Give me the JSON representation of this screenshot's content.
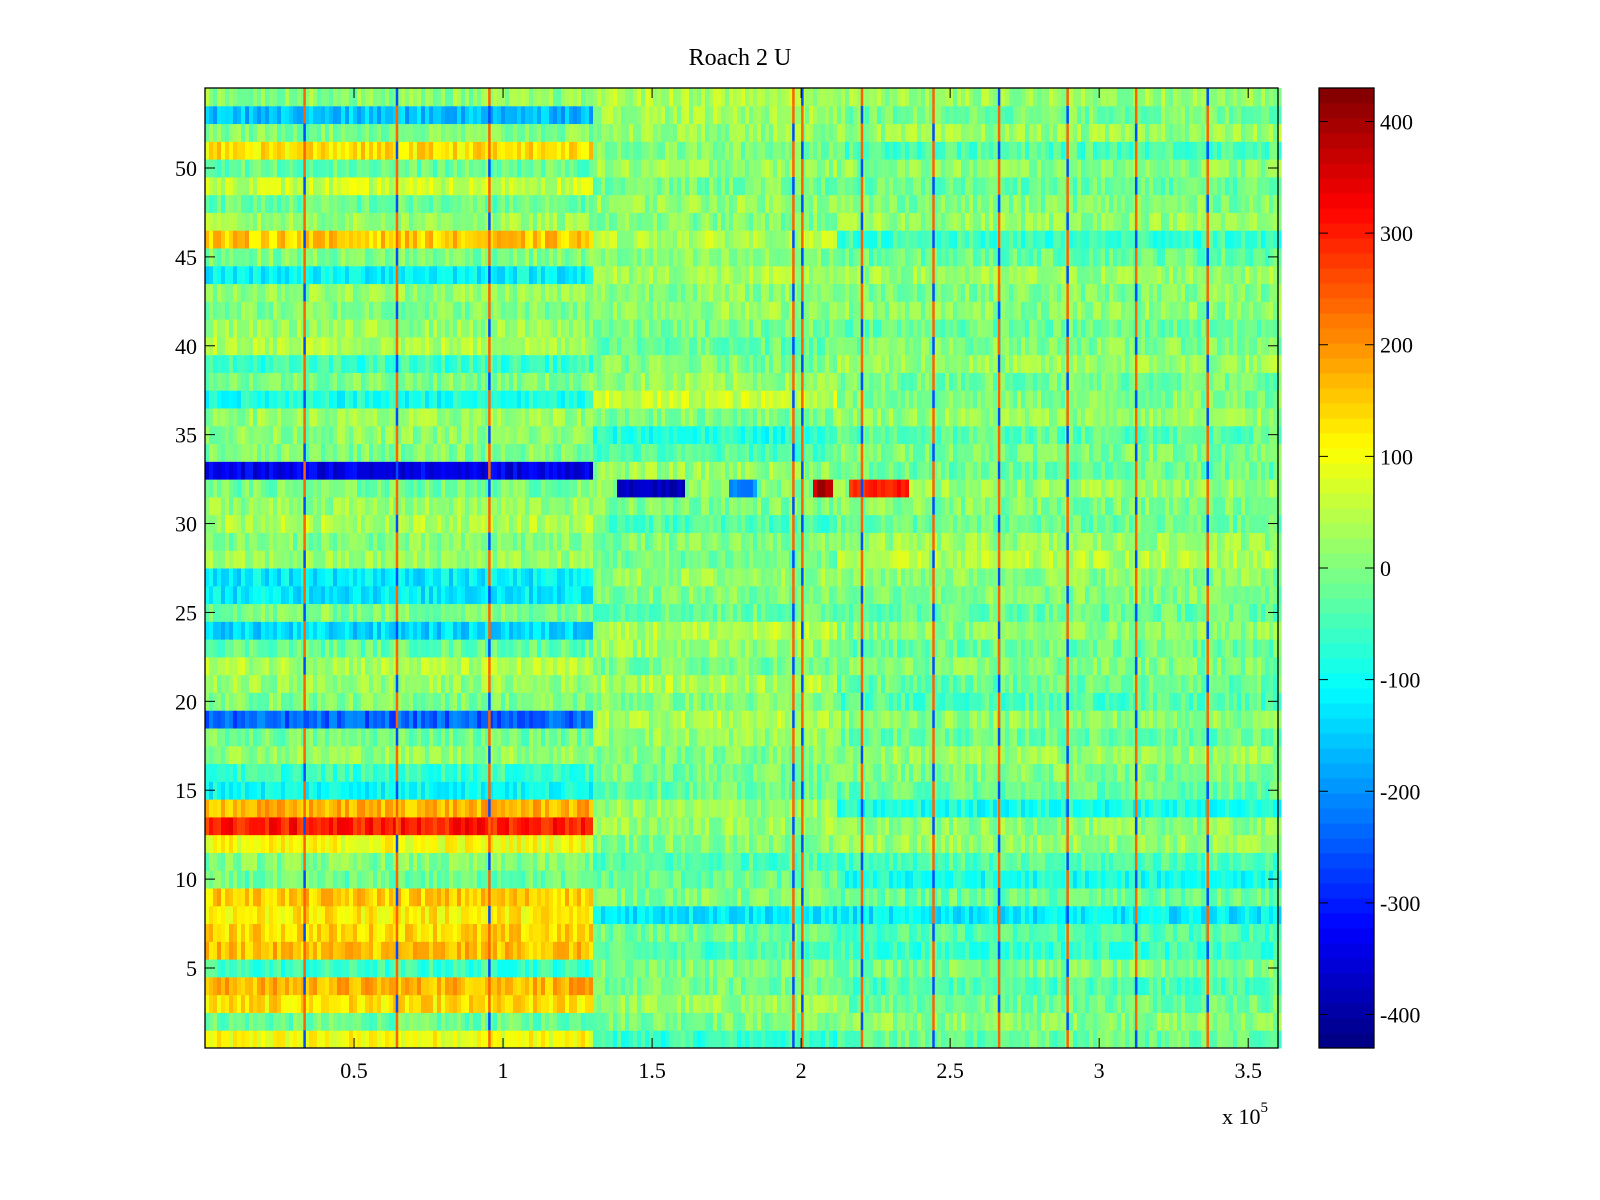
{
  "chart_data": {
    "type": "heatmap",
    "title": "Roach 2 U",
    "xlabel": "",
    "ylabel": "",
    "x_multiplier_label": {
      "base": "x 10",
      "exponent": "5"
    },
    "xlim": [
      0,
      3.6
    ],
    "ylim": [
      0.5,
      54.5
    ],
    "x_ticks": [
      0.5,
      1,
      1.5,
      2,
      2.5,
      3,
      3.5
    ],
    "x_tick_labels": [
      "0.5",
      "1",
      "1.5",
      "2",
      "2.5",
      "3",
      "3.5"
    ],
    "y_ticks": [
      5,
      10,
      15,
      20,
      25,
      30,
      35,
      40,
      45,
      50
    ],
    "y_tick_labels": [
      "5",
      "10",
      "15",
      "20",
      "25",
      "30",
      "35",
      "40",
      "45",
      "50"
    ],
    "colormap": "jet",
    "clim": [
      -430,
      430
    ],
    "colorbar": {
      "ticks": [
        400,
        300,
        200,
        100,
        0,
        -100,
        -200,
        -300,
        -400
      ],
      "tick_labels": [
        "400",
        "300",
        "200",
        "100",
        "0",
        "-100",
        "-200",
        "-300",
        "-400"
      ]
    },
    "segment_boundaries_x": [
      1.29,
      2.0,
      2.12
    ],
    "row_means": {
      "segment_A": [
        100,
        -20,
        130,
        170,
        -60,
        160,
        140,
        120,
        150,
        -20,
        0,
        100,
        300,
        170,
        -100,
        -60,
        20,
        -10,
        -240,
        0,
        20,
        40,
        -20,
        -140,
        0,
        -120,
        -120,
        20,
        0,
        40,
        20,
        -10,
        -340,
        0,
        10,
        20,
        -90,
        0,
        -60,
        40,
        20,
        0,
        20,
        -110,
        0,
        150,
        20,
        -20,
        60,
        -20,
        130,
        0,
        -160,
        10
      ],
      "segment_B": [
        -60,
        0,
        20,
        -10,
        0,
        -40,
        -10,
        -120,
        0,
        -20,
        -40,
        0,
        20,
        20,
        -20,
        -10,
        0,
        20,
        40,
        0,
        40,
        -10,
        20,
        40,
        -20,
        0,
        20,
        -10,
        0,
        -40,
        0,
        10,
        20,
        -40,
        -80,
        0,
        60,
        20,
        0,
        -20,
        -10,
        20,
        10,
        30,
        0,
        40,
        0,
        20,
        -10,
        20,
        0,
        20,
        30,
        40
      ],
      "segment_C": [
        -20,
        10,
        -10,
        -40,
        0,
        -60,
        -40,
        -120,
        -20,
        -90,
        -40,
        20,
        10,
        -90,
        -20,
        0,
        20,
        -20,
        10,
        -40,
        -20,
        0,
        -20,
        10,
        -20,
        0,
        10,
        40,
        20,
        -20,
        0,
        20,
        -20,
        0,
        -30,
        20,
        0,
        -10,
        20,
        0,
        -20,
        10,
        0,
        20,
        -20,
        -60,
        20,
        0,
        -20,
        10,
        -40,
        20,
        -10,
        20
      ]
    },
    "row32_events": [
      {
        "x_range": [
          1.38,
          1.6
        ],
        "value": -380
      },
      {
        "x_range": [
          1.75,
          1.85
        ],
        "value": -200
      },
      {
        "x_range": [
          2.03,
          2.1
        ],
        "value": 380
      },
      {
        "x_range": [
          2.15,
          2.35
        ],
        "value": 300
      }
    ],
    "vertical_spikes_x": [
      0.33,
      0.64,
      0.95,
      1.97,
      2.0,
      2.2,
      2.44,
      2.66,
      2.89,
      3.12,
      3.36
    ]
  }
}
